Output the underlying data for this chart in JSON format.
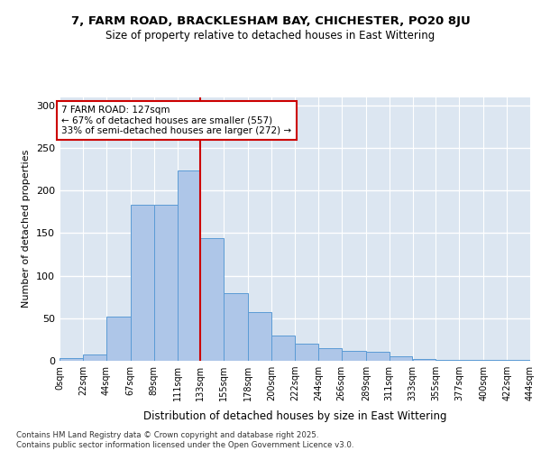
{
  "title_line1": "7, FARM ROAD, BRACKLESHAM BAY, CHICHESTER, PO20 8JU",
  "title_line2": "Size of property relative to detached houses in East Wittering",
  "xlabel": "Distribution of detached houses by size in East Wittering",
  "ylabel": "Number of detached properties",
  "bin_labels": [
    "0sqm",
    "22sqm",
    "44sqm",
    "67sqm",
    "89sqm",
    "111sqm",
    "133sqm",
    "155sqm",
    "178sqm",
    "200sqm",
    "222sqm",
    "244sqm",
    "266sqm",
    "289sqm",
    "311sqm",
    "333sqm",
    "355sqm",
    "377sqm",
    "400sqm",
    "422sqm",
    "444sqm"
  ],
  "histogram_counts": [
    3,
    7,
    52,
    183,
    183,
    224,
    144,
    79,
    57,
    30,
    20,
    15,
    12,
    11,
    5,
    2,
    1,
    1,
    1,
    1
  ],
  "bar_color": "#aec6e8",
  "bar_edge_color": "#5b9bd5",
  "bg_color": "#dce6f1",
  "grid_color": "#ffffff",
  "vline_color": "#cc0000",
  "annotation_text": "7 FARM ROAD: 127sqm\n← 67% of detached houses are smaller (557)\n33% of semi-detached houses are larger (272) →",
  "footnote": "Contains HM Land Registry data © Crown copyright and database right 2025.\nContains public sector information licensed under the Open Government Licence v3.0.",
  "ylim": [
    0,
    310
  ],
  "yticks": [
    0,
    50,
    100,
    150,
    200,
    250,
    300
  ],
  "bin_edges": [
    0,
    22,
    44,
    67,
    89,
    111,
    133,
    155,
    178,
    200,
    222,
    244,
    266,
    289,
    311,
    333,
    355,
    377,
    400,
    422,
    444
  ]
}
